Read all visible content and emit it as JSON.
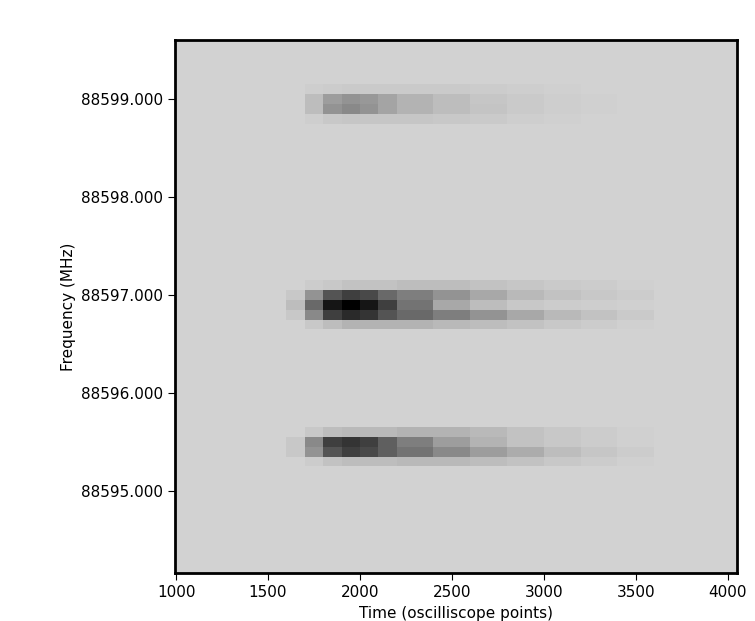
{
  "chart_data": {
    "type": "heatmap",
    "x_label": "Time (oscilliscope points)",
    "y_label": "Frequency (MHz)",
    "xlim": [
      995,
      4050
    ],
    "ylim": [
      88594.16,
      88599.6
    ],
    "xticks": [
      1000,
      1500,
      2000,
      2500,
      3000,
      3500,
      4000
    ],
    "yticks": [
      {
        "value": 88595,
        "label": "88595.000"
      },
      {
        "value": 88596,
        "label": "88596.000"
      },
      {
        "value": 88597,
        "label": "88597.000"
      },
      {
        "value": 88598,
        "label": "88598.000"
      },
      {
        "value": 88599,
        "label": "88599.000"
      }
    ],
    "x_edges": [
      995,
      1600,
      1700,
      1800,
      1900,
      2000,
      2100,
      2200,
      2400,
      2600,
      2800,
      3000,
      3200,
      3400,
      3600,
      4050
    ],
    "y_edges": [
      88594.16,
      88595.15,
      88595.25,
      88595.35,
      88595.45,
      88595.55,
      88595.65,
      88595.75,
      88596.55,
      88596.65,
      88596.75,
      88596.85,
      88596.95,
      88597.05,
      88597.15,
      88598.65,
      88598.75,
      88598.85,
      88598.95,
      88599.05,
      88599.15,
      88599.25,
      88599.6
    ],
    "cells": [
      [
        0,
        0,
        0,
        0,
        0,
        0,
        0,
        0,
        0,
        0,
        0,
        0,
        0,
        0,
        0
      ],
      [
        0,
        0,
        0,
        0,
        0,
        0,
        0,
        0,
        0,
        0,
        0,
        0,
        0,
        0,
        0
      ],
      [
        0,
        0,
        0.03,
        0.08,
        0.1,
        0.1,
        0.1,
        0.12,
        0.12,
        0.1,
        0.08,
        0.05,
        0.03,
        0.01,
        0
      ],
      [
        0,
        0.05,
        0.3,
        0.6,
        0.7,
        0.65,
        0.55,
        0.45,
        0.35,
        0.25,
        0.18,
        0.1,
        0.06,
        0.03,
        0
      ],
      [
        0,
        0.05,
        0.35,
        0.7,
        0.75,
        0.7,
        0.55,
        0.4,
        0.25,
        0.15,
        0.08,
        0.05,
        0.03,
        0.01,
        0
      ],
      [
        0,
        0,
        0.05,
        0.1,
        0.12,
        0.12,
        0.12,
        0.15,
        0.15,
        0.12,
        0.08,
        0.05,
        0.03,
        0.01,
        0
      ],
      [
        0,
        0,
        0,
        0,
        0,
        0,
        0,
        0,
        0,
        0,
        0,
        0,
        0,
        0,
        0
      ],
      [
        0,
        0,
        0,
        0,
        0,
        0,
        0,
        0,
        0,
        0,
        0,
        0,
        0,
        0,
        0
      ],
      [
        0,
        0,
        0,
        0,
        0,
        0,
        0,
        0,
        0,
        0,
        0,
        0,
        0,
        0,
        0
      ],
      [
        0,
        0,
        0.05,
        0.1,
        0.15,
        0.15,
        0.15,
        0.15,
        0.12,
        0.1,
        0.08,
        0.05,
        0.03,
        0.01,
        0
      ],
      [
        0,
        0.05,
        0.35,
        0.7,
        0.8,
        0.75,
        0.6,
        0.5,
        0.4,
        0.3,
        0.2,
        0.12,
        0.08,
        0.04,
        0
      ],
      [
        0,
        0.1,
        0.5,
        0.9,
        1.0,
        0.9,
        0.7,
        0.45,
        0.2,
        0.1,
        0.05,
        0.03,
        0.02,
        0.01,
        0
      ],
      [
        0,
        0.05,
        0.3,
        0.6,
        0.7,
        0.65,
        0.5,
        0.4,
        0.3,
        0.2,
        0.12,
        0.08,
        0.05,
        0.03,
        0
      ],
      [
        0,
        0,
        0.03,
        0.05,
        0.08,
        0.08,
        0.08,
        0.1,
        0.1,
        0.08,
        0.06,
        0.04,
        0.03,
        0.01,
        0
      ],
      [
        0,
        0,
        0,
        0,
        0,
        0,
        0,
        0,
        0,
        0,
        0,
        0,
        0,
        0,
        0
      ],
      [
        0,
        0,
        0,
        0,
        0,
        0,
        0,
        0,
        0,
        0,
        0,
        0,
        0,
        0,
        0
      ],
      [
        0,
        0,
        0.02,
        0.05,
        0.06,
        0.06,
        0.06,
        0.06,
        0.05,
        0.04,
        0.02,
        0.01,
        0,
        0,
        0
      ],
      [
        0,
        0,
        0.1,
        0.3,
        0.35,
        0.3,
        0.22,
        0.15,
        0.1,
        0.07,
        0.04,
        0.02,
        0.01,
        0,
        0
      ],
      [
        0,
        0,
        0.1,
        0.25,
        0.3,
        0.28,
        0.22,
        0.15,
        0.1,
        0.06,
        0.04,
        0.02,
        0.01,
        0,
        0
      ],
      [
        0,
        0,
        0.02,
        0.03,
        0.04,
        0.04,
        0.04,
        0.04,
        0.04,
        0.03,
        0.02,
        0.01,
        0,
        0,
        0
      ],
      [
        0,
        0,
        0,
        0,
        0,
        0,
        0,
        0,
        0,
        0,
        0,
        0,
        0,
        0,
        0
      ],
      [
        0,
        0,
        0,
        0,
        0,
        0,
        0,
        0,
        0,
        0,
        0,
        0,
        0,
        0,
        0
      ]
    ],
    "color_range": [
      0,
      1
    ]
  }
}
